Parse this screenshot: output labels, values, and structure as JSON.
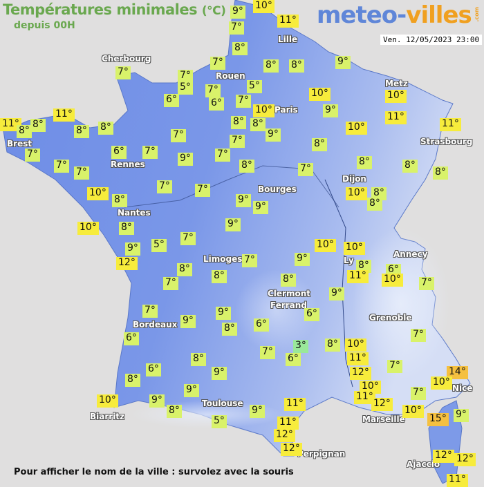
{
  "header": {
    "title": "Températures minimales",
    "unit": "(°C)",
    "subtitle": "depuis 00H"
  },
  "logo": {
    "part1": "meteo-",
    "part2": "villes",
    "suffix": ".com"
  },
  "timestamp": "Ven. 12/05/2023 23:00",
  "footer": "Pour afficher le nom de la ville : survolez avec la souris",
  "colors": {
    "land": "#6f8fe6",
    "land_high": "#c9d5f2",
    "sea": "#e0dfdf",
    "label_cool": "#d9f26a",
    "label_warm": "#f7ec3c",
    "label_hot": "#f5c040",
    "label_cold": "#9ae89a",
    "title": "#6aa84f"
  },
  "cities": [
    "Lille",
    "Cherbourg",
    "Rouen",
    "Metz",
    "Paris",
    "Brest",
    "Strasbourg",
    "Rennes",
    "Dijon",
    "Bourges",
    "Nantes",
    "Limoges",
    "Ly",
    "Annecy",
    "Clermont",
    "Ferrand",
    "Bordeaux",
    "Grenoble",
    "Nice",
    "Toulouse",
    "Biarritz",
    "Marseille",
    "Perpignan",
    "Ajaccio"
  ],
  "temperatures": [
    "9°",
    "10°",
    "7°",
    "11°",
    "8°",
    "7°",
    "7°",
    "7°",
    "5°",
    "8°",
    "8°",
    "9°",
    "5°",
    "7°",
    "6°",
    "6°",
    "7°",
    "10°",
    "10°",
    "10°",
    "9°",
    "11°",
    "11°",
    "11°",
    "8°",
    "8°",
    "8°",
    "8°",
    "8°",
    "8°",
    "9°",
    "10°",
    "11°",
    "7°",
    "7°",
    "8°",
    "7°",
    "7°",
    "7°",
    "6°",
    "7°",
    "9°",
    "7°",
    "8°",
    "7°",
    "8°",
    "8°",
    "8°",
    "7°",
    "7°",
    "10°",
    "8°",
    "9°",
    "9°",
    "10°",
    "8°",
    "8°",
    "10°",
    "8°",
    "9°",
    "9°",
    "5°",
    "7°",
    "10°",
    "10°",
    "12°",
    "7°",
    "8°",
    "9°",
    "8°",
    "6°",
    "11°",
    "10°",
    "7°",
    "7°",
    "8°",
    "8°",
    "9°",
    "7°",
    "6°",
    "9°",
    "8°",
    "9°",
    "6°",
    "6°",
    "3°",
    "8°",
    "10°",
    "7°",
    "6°",
    "11°",
    "7°",
    "7°",
    "8°",
    "12°",
    "6°",
    "9°",
    "8°",
    "14°",
    "10°",
    "10°",
    "7°",
    "11°",
    "12°",
    "9°",
    "9°",
    "10°",
    "8°",
    "9°",
    "11°",
    "10°",
    "15°",
    "9°",
    "5°",
    "11°",
    "12°",
    "12°",
    "12°",
    "12°",
    "11°"
  ]
}
